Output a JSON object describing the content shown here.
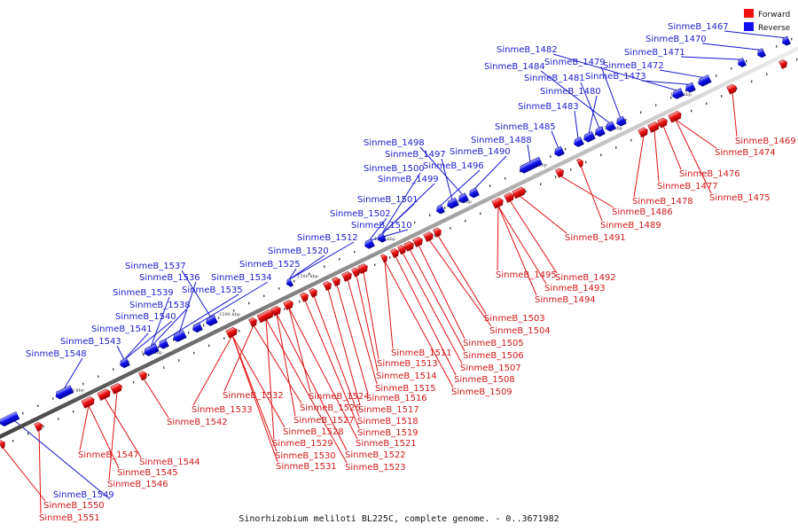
{
  "legend": {
    "forward_label": "Forward",
    "reverse_label": "Reverse",
    "forward_color": "#ee1111",
    "reverse_color": "#1111ee"
  },
  "caption": "Sinorhizobium meliloti BL225C, complete genome. - 0..3671982",
  "kbp_ticks": [
    "1530 kbp",
    "1540 kbp",
    "1550 kbp",
    "1560 kbp",
    "1570 kbp",
    "1580 kbp",
    "1590 kbp",
    "1600 kbp",
    "1610 kbp"
  ],
  "forward_genes": [
    "SinmeB_1469",
    "SinmeB_1474",
    "SinmeB_1476",
    "SinmeB_1477",
    "SinmeB_1475",
    "SinmeB_1478",
    "SinmeB_1486",
    "SinmeB_1489",
    "SinmeB_1491",
    "SinmeB_1492",
    "SinmeB_1495",
    "SinmeB_1493",
    "SinmeB_1494",
    "SinmeB_1503",
    "SinmeB_1504",
    "SinmeB_1505",
    "SinmeB_1506",
    "SinmeB_1507",
    "SinmeB_1508",
    "SinmeB_1509",
    "SinmeB_1511",
    "SinmeB_1513",
    "SinmeB_1514",
    "SinmeB_1515",
    "SinmeB_1516",
    "SinmeB_1517",
    "SinmeB_1518",
    "SinmeB_1519",
    "SinmeB_1521",
    "SinmeB_1522",
    "SinmeB_1523",
    "SinmeB_1524",
    "SinmeB_1526",
    "SinmeB_1527",
    "SinmeB_1528",
    "SinmeB_1529",
    "SinmeB_1530",
    "SinmeB_1531",
    "SinmeB_1532",
    "SinmeB_1533",
    "SinmeB_1542",
    "SinmeB_1547",
    "SinmeB_1544",
    "SinmeB_1545",
    "SinmeB_1546",
    "SinmeB_1550",
    "SinmeB_1551"
  ],
  "reverse_genes": [
    "SinmeB_1467",
    "SinmeB_1470",
    "SinmeB_1471",
    "SinmeB_1472",
    "SinmeB_1473",
    "SinmeB_1482",
    "SinmeB_1479",
    "SinmeB_1484",
    "SinmeB_1481",
    "SinmeB_1480",
    "SinmeB_1483",
    "SinmeB_1485",
    "SinmeB_1488",
    "SinmeB_1490",
    "SinmeB_1498",
    "SinmeB_1497",
    "SinmeB_1496",
    "SinmeB_1500",
    "SinmeB_1499",
    "SinmeB_1501",
    "SinmeB_1502",
    "SinmeB_1510",
    "SinmeB_1512",
    "SinmeB_1520",
    "SinmeB_1525",
    "SinmeB_1537",
    "SinmeB_1534",
    "SinmeB_1536",
    "SinmeB_1535",
    "SinmeB_1539",
    "SinmeB_1538",
    "SinmeB_1540",
    "SinmeB_1541",
    "SinmeB_1543",
    "SinmeB_1548",
    "SinmeB_1549"
  ]
}
